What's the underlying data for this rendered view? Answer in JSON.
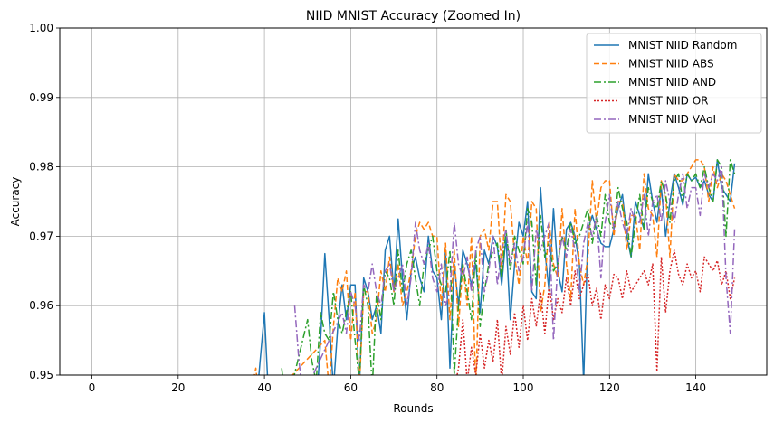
{
  "chart_data": {
    "type": "line",
    "title": "NIID MNIST Accuracy (Zoomed In)",
    "xlabel": "Rounds",
    "ylabel": "Accuracy",
    "xlim": [
      -7.45,
      156.45
    ],
    "ylim": [
      0.95,
      1.0
    ],
    "xticks": [
      0,
      20,
      40,
      60,
      80,
      100,
      120,
      140
    ],
    "yticks": [
      0.95,
      0.96,
      0.97,
      0.98,
      0.99,
      1.0
    ],
    "ytick_labels": [
      "0.95",
      "0.96",
      "0.97",
      "0.98",
      "0.99",
      "1.00"
    ],
    "grid": true,
    "legend_position": "upper right",
    "series": [
      {
        "name": "MNIST NIID Random",
        "color": "#1f77b4",
        "dash": "",
        "x": [
          38,
          39,
          40,
          41,
          52,
          53,
          54,
          55,
          56,
          57,
          58,
          59,
          60,
          61,
          62,
          63,
          64,
          65,
          66,
          67,
          68,
          69,
          70,
          71,
          72,
          73,
          74,
          75,
          76,
          77,
          78,
          79,
          80,
          81,
          82,
          83,
          84,
          85,
          86,
          87,
          88,
          89,
          90,
          91,
          92,
          93,
          94,
          95,
          96,
          97,
          98,
          99,
          100,
          101,
          102,
          103,
          104,
          105,
          106,
          107,
          108,
          109,
          110,
          111,
          112,
          113,
          114,
          115,
          116,
          117,
          118,
          119,
          120,
          121,
          122,
          123,
          124,
          125,
          126,
          127,
          128,
          129,
          130,
          131,
          132,
          133,
          134,
          135,
          136,
          137,
          138,
          139,
          140,
          141,
          142,
          143,
          144,
          145,
          146,
          147,
          148,
          149
        ],
        "y": [
          0.945,
          0.952,
          0.959,
          0.946,
          0.945,
          0.955,
          0.9675,
          0.958,
          0.948,
          0.957,
          0.963,
          0.958,
          0.963,
          0.963,
          0.948,
          0.964,
          0.962,
          0.958,
          0.96,
          0.956,
          0.968,
          0.97,
          0.962,
          0.9725,
          0.964,
          0.958,
          0.965,
          0.967,
          0.964,
          0.962,
          0.97,
          0.965,
          0.964,
          0.958,
          0.968,
          0.951,
          0.966,
          0.96,
          0.968,
          0.966,
          0.963,
          0.966,
          0.959,
          0.968,
          0.966,
          0.97,
          0.9685,
          0.963,
          0.97,
          0.958,
          0.966,
          0.972,
          0.97,
          0.975,
          0.962,
          0.961,
          0.977,
          0.968,
          0.962,
          0.974,
          0.965,
          0.962,
          0.971,
          0.972,
          0.97,
          0.966,
          0.949,
          0.971,
          0.973,
          0.971,
          0.969,
          0.9685,
          0.9685,
          0.971,
          0.974,
          0.976,
          0.97,
          0.967,
          0.975,
          0.973,
          0.971,
          0.979,
          0.975,
          0.972,
          0.977,
          0.97,
          0.975,
          0.979,
          0.977,
          0.9745,
          0.979,
          0.978,
          0.9785,
          0.977,
          0.978,
          0.976,
          0.975,
          0.981,
          0.977,
          0.976,
          0.975,
          0.9805
        ]
      },
      {
        "name": "MNIST NIID ABS",
        "color": "#ff7f0e",
        "dash": "6,3",
        "x": [
          36,
          37,
          38,
          39,
          54,
          55,
          56,
          57,
          58,
          59,
          60,
          61,
          62,
          63,
          64,
          65,
          66,
          67,
          68,
          69,
          70,
          71,
          72,
          73,
          74,
          75,
          76,
          77,
          78,
          79,
          80,
          81,
          82,
          83,
          84,
          85,
          86,
          87,
          88,
          89,
          90,
          91,
          92,
          93,
          94,
          95,
          96,
          97,
          98,
          99,
          100,
          101,
          102,
          103,
          104,
          105,
          106,
          107,
          108,
          109,
          110,
          111,
          112,
          113,
          114,
          115,
          116,
          117,
          118,
          119,
          120,
          121,
          122,
          123,
          124,
          125,
          126,
          127,
          128,
          129,
          130,
          131,
          132,
          133,
          134,
          135,
          136,
          137,
          138,
          139,
          140,
          141,
          142,
          143,
          144,
          145,
          146,
          147,
          148,
          149
        ],
        "y": [
          0.95,
          0.948,
          0.951,
          0.945,
          0.955,
          0.948,
          0.957,
          0.964,
          0.962,
          0.965,
          0.955,
          0.962,
          0.948,
          0.962,
          0.962,
          0.956,
          0.958,
          0.965,
          0.962,
          0.967,
          0.962,
          0.966,
          0.96,
          0.962,
          0.965,
          0.97,
          0.972,
          0.971,
          0.972,
          0.97,
          0.97,
          0.96,
          0.969,
          0.958,
          0.968,
          0.957,
          0.966,
          0.96,
          0.97,
          0.948,
          0.97,
          0.971,
          0.968,
          0.975,
          0.975,
          0.965,
          0.976,
          0.975,
          0.967,
          0.963,
          0.97,
          0.966,
          0.975,
          0.974,
          0.959,
          0.963,
          0.972,
          0.966,
          0.964,
          0.974,
          0.966,
          0.961,
          0.974,
          0.966,
          0.963,
          0.967,
          0.978,
          0.972,
          0.977,
          0.978,
          0.978,
          0.97,
          0.975,
          0.975,
          0.968,
          0.973,
          0.973,
          0.968,
          0.979,
          0.974,
          0.973,
          0.967,
          0.978,
          0.976,
          0.967,
          0.979,
          0.978,
          0.978,
          0.979,
          0.98,
          0.981,
          0.981,
          0.98,
          0.975,
          0.98,
          0.977,
          0.979,
          0.978,
          0.976,
          0.974
        ]
      },
      {
        "name": "MNIST NIID AND",
        "color": "#2ca02c",
        "dash": "8,3,2,3",
        "x": [
          44,
          45,
          50,
          51,
          52,
          53,
          54,
          55,
          56,
          57,
          58,
          59,
          60,
          61,
          62,
          63,
          64,
          65,
          66,
          67,
          68,
          69,
          70,
          71,
          72,
          73,
          74,
          75,
          76,
          77,
          78,
          79,
          80,
          81,
          82,
          83,
          84,
          85,
          86,
          87,
          88,
          89,
          90,
          91,
          92,
          93,
          94,
          95,
          96,
          97,
          98,
          99,
          100,
          101,
          102,
          103,
          104,
          105,
          106,
          107,
          108,
          109,
          110,
          111,
          112,
          113,
          114,
          115,
          116,
          117,
          118,
          119,
          120,
          121,
          122,
          123,
          124,
          125,
          126,
          127,
          128,
          129,
          130,
          131,
          132,
          133,
          134,
          135,
          136,
          137,
          138,
          139,
          140,
          141,
          142,
          143,
          144,
          145,
          146,
          147,
          148,
          149
        ],
        "y": [
          0.951,
          0.945,
          0.958,
          0.952,
          0.949,
          0.959,
          0.956,
          0.955,
          0.962,
          0.958,
          0.956,
          0.959,
          0.962,
          0.955,
          0.949,
          0.963,
          0.96,
          0.948,
          0.962,
          0.958,
          0.965,
          0.964,
          0.96,
          0.968,
          0.962,
          0.966,
          0.968,
          0.964,
          0.96,
          0.966,
          0.968,
          0.97,
          0.965,
          0.963,
          0.962,
          0.968,
          0.95,
          0.96,
          0.966,
          0.962,
          0.958,
          0.968,
          0.957,
          0.962,
          0.966,
          0.968,
          0.969,
          0.964,
          0.971,
          0.965,
          0.97,
          0.968,
          0.966,
          0.974,
          0.972,
          0.963,
          0.973,
          0.967,
          0.969,
          0.965,
          0.966,
          0.97,
          0.968,
          0.972,
          0.969,
          0.97,
          0.972,
          0.974,
          0.969,
          0.973,
          0.97,
          0.976,
          0.972,
          0.971,
          0.977,
          0.974,
          0.972,
          0.967,
          0.972,
          0.976,
          0.971,
          0.977,
          0.975,
          0.974,
          0.978,
          0.976,
          0.972,
          0.978,
          0.979,
          0.975,
          0.979,
          0.978,
          0.979,
          0.977,
          0.98,
          0.977,
          0.975,
          0.981,
          0.98,
          0.97,
          0.981,
          0.979
        ]
      },
      {
        "name": "MNIST NIID OR",
        "color": "#d62728",
        "dash": "2,2",
        "x": [
          84,
          85,
          86,
          87,
          88,
          89,
          90,
          91,
          92,
          93,
          94,
          95,
          96,
          97,
          98,
          99,
          100,
          101,
          102,
          103,
          104,
          105,
          106,
          107,
          108,
          109,
          110,
          111,
          112,
          113,
          114,
          115,
          116,
          117,
          118,
          119,
          120,
          121,
          122,
          123,
          124,
          125,
          126,
          127,
          128,
          129,
          130,
          131,
          132,
          133,
          134,
          135,
          136,
          137,
          138,
          139,
          140,
          141,
          142,
          143,
          144,
          145,
          146,
          147,
          148,
          149
        ],
        "y": [
          0.948,
          0.951,
          0.958,
          0.949,
          0.954,
          0.95,
          0.956,
          0.951,
          0.955,
          0.952,
          0.958,
          0.949,
          0.957,
          0.953,
          0.959,
          0.954,
          0.96,
          0.955,
          0.961,
          0.957,
          0.962,
          0.956,
          0.963,
          0.958,
          0.961,
          0.959,
          0.964,
          0.96,
          0.965,
          0.961,
          0.963,
          0.9645,
          0.96,
          0.9625,
          0.958,
          0.963,
          0.961,
          0.9645,
          0.964,
          0.961,
          0.965,
          0.962,
          0.963,
          0.964,
          0.965,
          0.963,
          0.966,
          0.9505,
          0.967,
          0.959,
          0.965,
          0.968,
          0.9645,
          0.963,
          0.966,
          0.964,
          0.965,
          0.962,
          0.967,
          0.966,
          0.965,
          0.9665,
          0.963,
          0.965,
          0.961,
          0.964
        ]
      },
      {
        "name": "MNIST NIID VAoI",
        "color": "#9467bd",
        "dash": "8,3,2,3",
        "x": [
          47,
          48,
          49,
          58,
          59,
          60,
          61,
          62,
          63,
          64,
          65,
          66,
          67,
          68,
          69,
          70,
          71,
          72,
          73,
          74,
          75,
          76,
          77,
          78,
          79,
          80,
          81,
          82,
          83,
          84,
          85,
          86,
          87,
          88,
          89,
          90,
          91,
          92,
          93,
          94,
          95,
          96,
          97,
          98,
          99,
          100,
          101,
          102,
          103,
          104,
          105,
          106,
          107,
          108,
          109,
          110,
          111,
          112,
          113,
          114,
          115,
          116,
          117,
          118,
          119,
          120,
          121,
          122,
          123,
          124,
          125,
          126,
          127,
          128,
          129,
          130,
          131,
          132,
          133,
          134,
          135,
          136,
          137,
          138,
          139,
          140,
          141,
          142,
          143,
          144,
          145,
          146,
          147,
          148,
          149
        ],
        "y": [
          0.96,
          0.952,
          0.947,
          0.959,
          0.956,
          0.962,
          0.96,
          0.955,
          0.963,
          0.962,
          0.966,
          0.962,
          0.96,
          0.965,
          0.966,
          0.962,
          0.964,
          0.966,
          0.96,
          0.964,
          0.972,
          0.968,
          0.966,
          0.969,
          0.964,
          0.962,
          0.966,
          0.96,
          0.962,
          0.972,
          0.966,
          0.964,
          0.967,
          0.962,
          0.968,
          0.97,
          0.962,
          0.965,
          0.97,
          0.963,
          0.968,
          0.971,
          0.966,
          0.969,
          0.965,
          0.967,
          0.972,
          0.962,
          0.971,
          0.968,
          0.97,
          0.972,
          0.955,
          0.966,
          0.97,
          0.967,
          0.971,
          0.968,
          0.962,
          0.969,
          0.972,
          0.97,
          0.973,
          0.964,
          0.972,
          0.976,
          0.971,
          0.975,
          0.972,
          0.97,
          0.974,
          0.972,
          0.972,
          0.976,
          0.97,
          0.975,
          0.976,
          0.972,
          0.978,
          0.975,
          0.972,
          0.976,
          0.979,
          0.974,
          0.977,
          0.977,
          0.973,
          0.979,
          0.977,
          0.979,
          0.978,
          0.98,
          0.964,
          0.956,
          0.971
        ]
      }
    ]
  }
}
